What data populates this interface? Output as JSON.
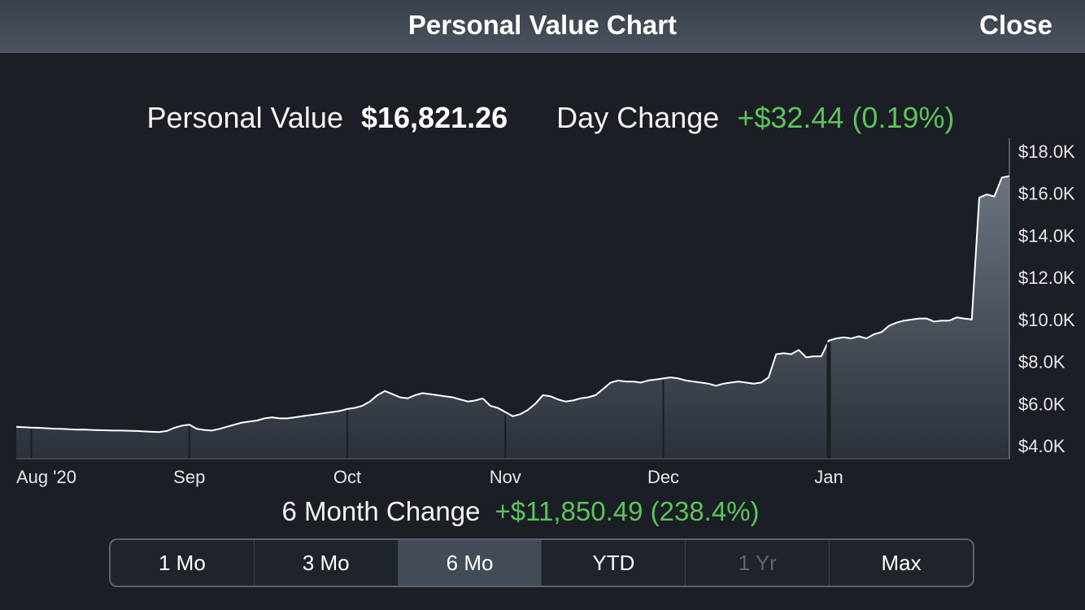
{
  "header": {
    "title": "Personal Value Chart",
    "close_label": "Close"
  },
  "summary": {
    "value_label": "Personal Value",
    "value": "$16,821.26",
    "day_change_label": "Day Change",
    "day_change": "+$32.44 (0.19%)"
  },
  "period_change": {
    "label": "6 Month Change",
    "value": "+$11,850.49 (238.4%)"
  },
  "range_buttons": [
    {
      "label": "1 Mo"
    },
    {
      "label": "3 Mo"
    },
    {
      "label": "6 Mo"
    },
    {
      "label": "YTD"
    },
    {
      "label": "1 Yr"
    },
    {
      "label": "Max"
    }
  ],
  "selected_range": "6 Mo",
  "disabled_range": "1 Yr",
  "colors": {
    "background": "#1b1e24",
    "positive": "#5cc45c",
    "line": "#ffffff",
    "area_top": "#6a7480",
    "area_bottom": "#2b313a"
  },
  "chart_data": {
    "type": "area",
    "title": "",
    "xlabel": "",
    "ylabel": "",
    "ylim": [
      4000,
      18000
    ],
    "y_ticks": [
      {
        "value": 18000,
        "label": "$18.0K"
      },
      {
        "value": 16000,
        "label": "$16.0K"
      },
      {
        "value": 14000,
        "label": "$14.0K"
      },
      {
        "value": 12000,
        "label": "$12.0K"
      },
      {
        "value": 10000,
        "label": "$10.0K"
      },
      {
        "value": 8000,
        "label": "$8.0K"
      },
      {
        "value": 6000,
        "label": "$6.0K"
      },
      {
        "value": 4000,
        "label": "$4.0K"
      }
    ],
    "x_ticks": [
      {
        "x": 2,
        "label": "Aug '20"
      },
      {
        "x": 23,
        "label": "Sep"
      },
      {
        "x": 44,
        "label": "Oct"
      },
      {
        "x": 65,
        "label": "Nov"
      },
      {
        "x": 86,
        "label": "Dec"
      },
      {
        "x": 108,
        "label": "Jan"
      }
    ],
    "grid": false,
    "series": [
      {
        "values": [
          4900,
          4880,
          4860,
          4850,
          4830,
          4810,
          4800,
          4780,
          4760,
          4770,
          4750,
          4740,
          4730,
          4720,
          4720,
          4710,
          4700,
          4680,
          4660,
          4650,
          4700,
          4850,
          4950,
          5000,
          4800,
          4750,
          4720,
          4800,
          4900,
          5000,
          5100,
          5150,
          5200,
          5300,
          5350,
          5300,
          5300,
          5350,
          5400,
          5450,
          5500,
          5550,
          5600,
          5650,
          5750,
          5800,
          5900,
          6100,
          6400,
          6600,
          6450,
          6300,
          6250,
          6400,
          6500,
          6450,
          6400,
          6350,
          6300,
          6200,
          6100,
          6150,
          6250,
          5900,
          5800,
          5600,
          5400,
          5500,
          5700,
          6000,
          6400,
          6350,
          6200,
          6100,
          6150,
          6250,
          6300,
          6400,
          6700,
          7000,
          7100,
          7050,
          7050,
          7000,
          7100,
          7150,
          7200,
          7250,
          7200,
          7100,
          7050,
          7000,
          6950,
          6850,
          6950,
          7000,
          7050,
          7000,
          6950,
          7000,
          7250,
          8350,
          8400,
          8350,
          8550,
          8200,
          8250,
          8250,
          9000,
          9100,
          9150,
          9100,
          9200,
          9100,
          9300,
          9400,
          9700,
          9850,
          9950,
          10000,
          10050,
          10050,
          9900,
          9950,
          9950,
          10100,
          10050,
          10000,
          15800,
          15950,
          15850,
          16750,
          16821
        ]
      }
    ]
  }
}
